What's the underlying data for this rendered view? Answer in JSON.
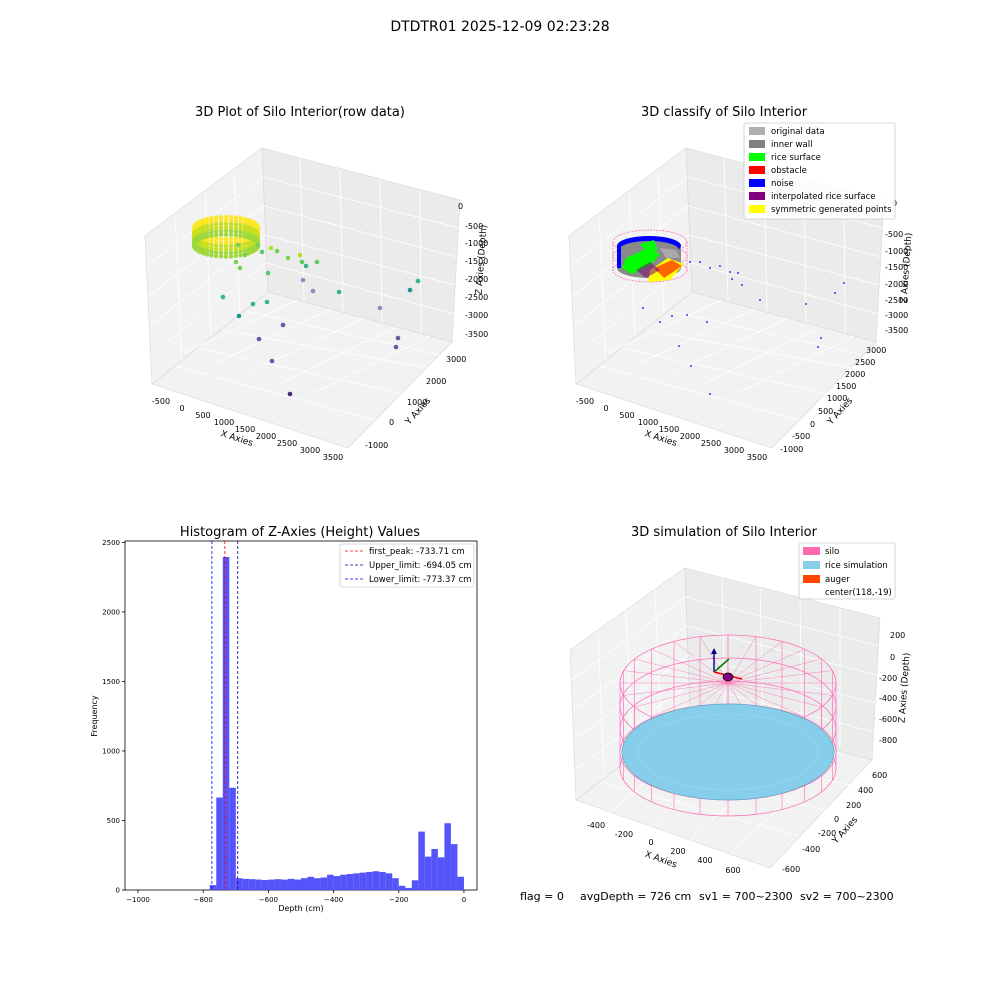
{
  "suptitle": "DTDTR01 2025-12-09 02:23:28",
  "footer": {
    "flag": "flag = 0",
    "avg_depth": "avgDepth = 726 cm",
    "sv1": "sv1 = 700~2300",
    "sv2": "sv2 = 700~2300"
  },
  "chart_data": [
    {
      "type": "scatter",
      "title": "3D Plot of Silo Interior(row data)",
      "xlabel": "X Axies",
      "ylabel": "Y Axies",
      "zlabel": "Z Axies (Depth)",
      "x_ticks": [
        "-500",
        "0",
        "500",
        "1000",
        "1500",
        "2000",
        "2500",
        "3000",
        "3500"
      ],
      "y_ticks": [
        "-1000",
        "0",
        "1000",
        "2000",
        "3000"
      ],
      "z_ticks": [
        "0",
        "-500",
        "-1000",
        "-1500",
        "-2000",
        "-2500",
        "-3000",
        "-3500"
      ],
      "colormap": [
        "#440154",
        "#3b528b",
        "#21918c",
        "#5ec962",
        "#fde725"
      ]
    },
    {
      "type": "scatter",
      "title": "3D classify of Silo Interior",
      "xlabel": "X Axies",
      "ylabel": "Y Axies",
      "zlabel": "Z Axies (Depth)",
      "x_ticks": [
        "-500",
        "0",
        "500",
        "1000",
        "1500",
        "2000",
        "2500",
        "3000",
        "3500"
      ],
      "y_ticks": [
        "-1000",
        "-500",
        "0",
        "500",
        "1000",
        "1500",
        "2000",
        "2500",
        "3000"
      ],
      "z_ticks": [
        "0",
        "-500",
        "-1000",
        "-1500",
        "-2000",
        "-2500",
        "-3000",
        "-3500"
      ],
      "legend": [
        {
          "label": "original data",
          "color": "#b0b0b0"
        },
        {
          "label": "inner wall",
          "color": "#808080"
        },
        {
          "label": "rice surface",
          "color": "#00ff00"
        },
        {
          "label": "obstacle",
          "color": "#ff0000"
        },
        {
          "label": "noise",
          "color": "#0000ff"
        },
        {
          "label": "interpolated rice surface",
          "color": "#800080"
        },
        {
          "label": "symmetric generated points",
          "color": "#ffff00"
        }
      ]
    },
    {
      "type": "bar",
      "title": "Histogram of Z-Axies (Height) Values",
      "xlabel": "Depth (cm)",
      "ylabel": "Frequency",
      "xlim": [
        -1040,
        40
      ],
      "ylim": [
        0,
        2510
      ],
      "x_ticks": [
        -1000,
        -800,
        -600,
        -400,
        -200,
        0
      ],
      "y_ticks": [
        0,
        500,
        1000,
        1500,
        2000,
        2500
      ],
      "bar_color": "#4b4bfa",
      "bins": [
        {
          "x0": -1000,
          "x1": -980,
          "v": 0
        },
        {
          "x0": -980,
          "x1": -960,
          "v": 0
        },
        {
          "x0": -960,
          "x1": -940,
          "v": 0
        },
        {
          "x0": -940,
          "x1": -920,
          "v": 0
        },
        {
          "x0": -920,
          "x1": -900,
          "v": 0
        },
        {
          "x0": -900,
          "x1": -880,
          "v": 0
        },
        {
          "x0": -880,
          "x1": -860,
          "v": 0
        },
        {
          "x0": -860,
          "x1": -840,
          "v": 0
        },
        {
          "x0": -840,
          "x1": -820,
          "v": 0
        },
        {
          "x0": -820,
          "x1": -800,
          "v": 0
        },
        {
          "x0": -800,
          "x1": -780,
          "v": 0
        },
        {
          "x0": -780,
          "x1": -760,
          "v": 35
        },
        {
          "x0": -760,
          "x1": -740,
          "v": 665
        },
        {
          "x0": -740,
          "x1": -720,
          "v": 2395
        },
        {
          "x0": -720,
          "x1": -700,
          "v": 735
        },
        {
          "x0": -700,
          "x1": -680,
          "v": 85
        },
        {
          "x0": -680,
          "x1": -660,
          "v": 80
        },
        {
          "x0": -660,
          "x1": -640,
          "v": 78
        },
        {
          "x0": -640,
          "x1": -620,
          "v": 75
        },
        {
          "x0": -620,
          "x1": -600,
          "v": 72
        },
        {
          "x0": -600,
          "x1": -580,
          "v": 75
        },
        {
          "x0": -580,
          "x1": -560,
          "v": 78
        },
        {
          "x0": -560,
          "x1": -540,
          "v": 75
        },
        {
          "x0": -540,
          "x1": -520,
          "v": 80
        },
        {
          "x0": -520,
          "x1": -500,
          "v": 75
        },
        {
          "x0": -500,
          "x1": -480,
          "v": 85
        },
        {
          "x0": -480,
          "x1": -460,
          "v": 95
        },
        {
          "x0": -460,
          "x1": -440,
          "v": 85
        },
        {
          "x0": -440,
          "x1": -420,
          "v": 90
        },
        {
          "x0": -420,
          "x1": -400,
          "v": 110
        },
        {
          "x0": -400,
          "x1": -380,
          "v": 100
        },
        {
          "x0": -380,
          "x1": -360,
          "v": 110
        },
        {
          "x0": -360,
          "x1": -340,
          "v": 115
        },
        {
          "x0": -340,
          "x1": -320,
          "v": 120
        },
        {
          "x0": -320,
          "x1": -300,
          "v": 125
        },
        {
          "x0": -300,
          "x1": -280,
          "v": 130
        },
        {
          "x0": -280,
          "x1": -260,
          "v": 135
        },
        {
          "x0": -260,
          "x1": -240,
          "v": 130
        },
        {
          "x0": -240,
          "x1": -220,
          "v": 120
        },
        {
          "x0": -220,
          "x1": -200,
          "v": 85
        },
        {
          "x0": -200,
          "x1": -180,
          "v": 30
        },
        {
          "x0": -180,
          "x1": -160,
          "v": 15
        },
        {
          "x0": -160,
          "x1": -140,
          "v": 70
        },
        {
          "x0": -140,
          "x1": -120,
          "v": 420
        },
        {
          "x0": -120,
          "x1": -100,
          "v": 240
        },
        {
          "x0": -100,
          "x1": -80,
          "v": 295
        },
        {
          "x0": -80,
          "x1": -60,
          "v": 235
        },
        {
          "x0": -60,
          "x1": -40,
          "v": 480
        },
        {
          "x0": -40,
          "x1": -20,
          "v": 330
        },
        {
          "x0": -20,
          "x1": 0,
          "v": 95
        }
      ],
      "lines": [
        {
          "label": "first_peak: -733.71 cm",
          "x": -733.71,
          "color": "#ff0000"
        },
        {
          "label": "Upper_limit: -694.05 cm",
          "x": -694.05,
          "color": "#00008b"
        },
        {
          "label": "Lower_limit: -773.37 cm",
          "x": -773.37,
          "color": "#0000ff"
        }
      ]
    },
    {
      "type": "scatter",
      "title": "3D simulation of Silo Interior",
      "xlabel": "X Axies",
      "ylabel": "Y Axies",
      "zlabel": "Z Axies (Depth)",
      "x_ticks": [
        "-400",
        "-200",
        "0",
        "200",
        "400",
        "600"
      ],
      "y_ticks": [
        "-600",
        "-400",
        "-200",
        "0",
        "200",
        "400",
        "600"
      ],
      "z_ticks": [
        "200",
        "0",
        "-200",
        "-400",
        "-600",
        "-800"
      ],
      "legend": [
        {
          "label": "silo",
          "color": "#ff69b4"
        },
        {
          "label": "rice simulation",
          "color": "#87ceeb"
        },
        {
          "label": "auger",
          "color": "#ff4500"
        },
        {
          "label": "center(118,-19)",
          "color": ""
        }
      ]
    }
  ]
}
